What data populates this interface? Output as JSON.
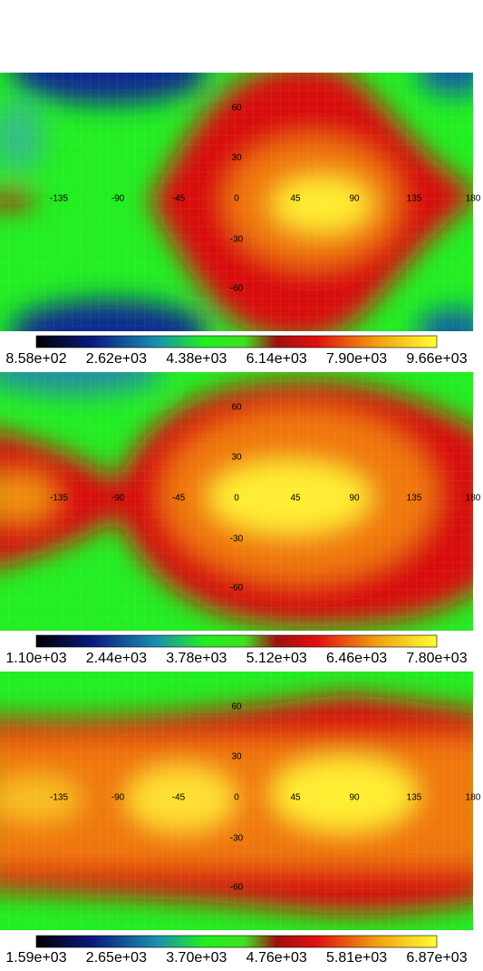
{
  "panels": [
    {
      "lon_labels": [
        "-135",
        "-90",
        "-45",
        "0",
        "45",
        "90",
        "135",
        "180"
      ],
      "lat_labels": [
        "60",
        "30",
        "-30",
        "-60"
      ],
      "colorbar_labels": [
        "8.58e+02",
        "2.62e+03",
        "4.38e+03",
        "6.14e+03",
        "7.90e+03",
        "9.66e+03"
      ]
    },
    {
      "lon_labels": [
        "-135",
        "-90",
        "-45",
        "0",
        "45",
        "90",
        "135",
        "180"
      ],
      "lat_labels": [
        "60",
        "30",
        "-30",
        "-60"
      ],
      "colorbar_labels": [
        "1.10e+03",
        "2.44e+03",
        "3.78e+03",
        "5.12e+03",
        "6.46e+03",
        "7.80e+03"
      ]
    },
    {
      "lon_labels": [
        "-135",
        "-90",
        "-45",
        "0",
        "45",
        "90",
        "135",
        "180"
      ],
      "lat_labels": [
        "60",
        "30",
        "-30",
        "-60"
      ],
      "colorbar_labels": [
        "1.59e+03",
        "2.65e+03",
        "3.70e+03",
        "4.76e+03",
        "5.81e+03",
        "6.87e+03"
      ]
    }
  ]
}
